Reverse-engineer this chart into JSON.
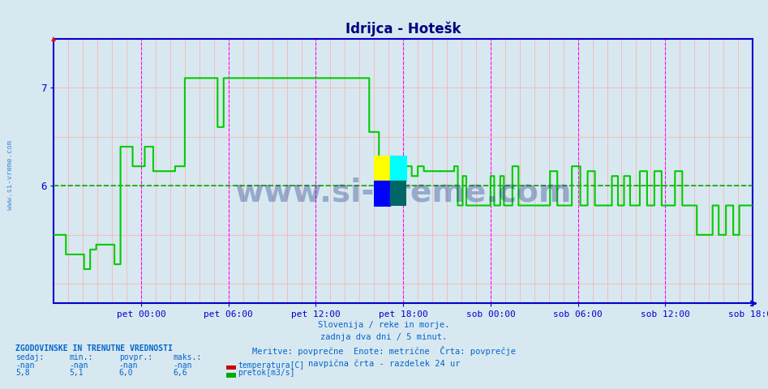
{
  "title": "Idrijca - Hotešk",
  "title_color": "#000080",
  "bg_color": "#d8e8f0",
  "plot_bg_color": "#d8e8f0",
  "ylabel_ticks": [
    6,
    7
  ],
  "ylim": [
    4.8,
    7.5
  ],
  "xlim": [
    0,
    576
  ],
  "x_tick_positions": [
    72,
    144,
    216,
    288,
    360,
    432,
    504,
    576
  ],
  "x_tick_labels": [
    "pet 00:00",
    "pet 06:00",
    "pet 12:00",
    "pet 18:00",
    "sob 00:00",
    "sob 06:00",
    "sob 12:00",
    "sob 18:00"
  ],
  "avg_line_y": 6.0,
  "avg_line_color": "#00aa00",
  "vline_color": "#ff00ff",
  "axis_color": "#0000cc",
  "line_color": "#00cc00",
  "text_color": "#0066cc",
  "watermark_text": "www.si-vreme.com",
  "watermark_color": "#1a3a8a",
  "caption_lines": [
    "Slovenija / reke in morje.",
    "zadnja dva dni / 5 minut.",
    "Meritve: povprečne  Enote: metrične  Črta: povprečje",
    "navpična črta - razdelek 24 ur"
  ],
  "legend_title": "ZGODOVINSKE IN TRENUTNE VREDNOSTI",
  "legend_headers": [
    "sedaj:",
    "min.:",
    "povpr.:",
    "maks.:"
  ],
  "legend_row1": [
    "-nan",
    "-nan",
    "-nan",
    "-nan",
    "temperatura[C]"
  ],
  "legend_row2": [
    "5,8",
    "5,1",
    "6,0",
    "6,6",
    "pretok[m3/s]"
  ],
  "temp_color": "#cc0000",
  "pretok_color": "#00aa00"
}
